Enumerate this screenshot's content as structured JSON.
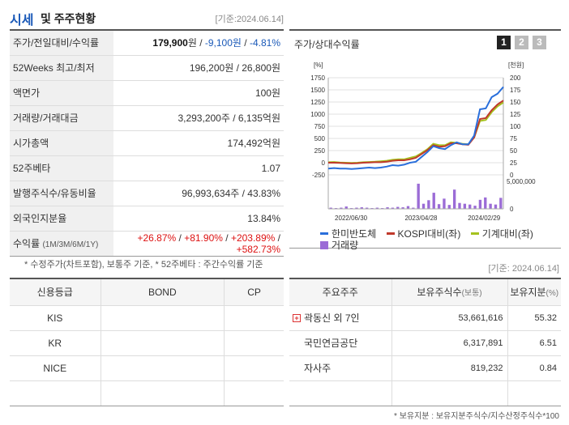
{
  "header": {
    "title_main": "시세",
    "title_sub": "및 주주현황",
    "date": "[기준:2024.06.14]"
  },
  "quote": {
    "price_label": "주가/전일대비/수익률",
    "price": "179,900",
    "price_unit": "원",
    "change": "-9,100원",
    "change_pct": "-4.81%",
    "week52_label": "52Weeks 최고/최저",
    "week52_value": "196,200원 / 26,800원",
    "face_label": "액면가",
    "face_value": "100원",
    "volume_label": "거래량/거래대금",
    "volume_value": "3,293,200주 / 6,135억원",
    "mcap_label": "시가총액",
    "mcap_value": "174,492억원",
    "beta_label": "52주베타",
    "beta_value": "1.07",
    "shares_label": "발행주식수/유동비율",
    "shares_value": "96,993,634주 / 43.83%",
    "foreign_label": "외국인지분율",
    "foreign_value": "13.84%",
    "return_label": "수익률",
    "return_periods": "(1M/3M/6M/1Y)",
    "return_1m": "+26.87%",
    "return_3m": "+81.90%",
    "return_6m": "+203.89%",
    "return_1y": "+582.73%"
  },
  "note1": "* 수정주가(차트포함), 보통주 기준, * 52주베타 : 주간수익률 기준",
  "chart_panel": {
    "title": "주가/상대수익률",
    "pages": [
      "1",
      "2",
      "3"
    ],
    "active_page": "1"
  },
  "chart_data": {
    "type": "line",
    "left_axis_unit": "[%]",
    "right_axis_unit": "[천원]",
    "left_ticks": [
      "1750",
      "1500",
      "1250",
      "1000",
      "750",
      "500",
      "250",
      "0",
      "-250"
    ],
    "right_ticks": [
      "200",
      "175",
      "150",
      "125",
      "100",
      "75",
      "50",
      "25",
      "0"
    ],
    "ylim_left": [
      -250,
      1750
    ],
    "ylim_right": [
      0,
      200
    ],
    "volume_tick": "5,000,000",
    "volume_zero": "0",
    "x_ticks": [
      "2022/06/30",
      "2023/04/28",
      "2024/02/29"
    ],
    "grid": true,
    "legend_position": "bottom",
    "series": [
      {
        "name": "한미반도체",
        "color": "#2a6fdb",
        "values": [
          -120,
          -110,
          -120,
          -120,
          -130,
          -120,
          -110,
          -100,
          -110,
          -100,
          -80,
          -50,
          -60,
          -40,
          0,
          20,
          120,
          220,
          340,
          300,
          280,
          360,
          420,
          380,
          380,
          560,
          1100,
          1120,
          1350,
          1420,
          1560
        ]
      },
      {
        "name": "KOSPI대비(좌)",
        "color": "#c0392b",
        "values": [
          0,
          0,
          -5,
          -10,
          -15,
          -10,
          0,
          5,
          10,
          10,
          20,
          40,
          50,
          50,
          70,
          100,
          180,
          260,
          360,
          330,
          340,
          400,
          400,
          380,
          370,
          520,
          900,
          920,
          1080,
          1200,
          1280
        ]
      },
      {
        "name": "기계대비(좌)",
        "color": "#a5c21e",
        "values": [
          10,
          15,
          5,
          0,
          -5,
          0,
          10,
          15,
          20,
          30,
          40,
          60,
          70,
          70,
          100,
          130,
          200,
          280,
          390,
          360,
          360,
          420,
          410,
          390,
          380,
          520,
          860,
          880,
          1040,
          1160,
          1240
        ]
      }
    ],
    "volume_name": "거래량",
    "volume_color": "#9b6cd6",
    "volume": [
      0.3,
      0.2,
      0.3,
      0.6,
      0.2,
      0.3,
      0.4,
      0.3,
      0.2,
      0.3,
      0.2,
      0.4,
      0.3,
      0.5,
      0.4,
      0.7,
      0.3,
      6.4,
      1.3,
      2.2,
      4.1,
      1.2,
      2.6,
      1.0,
      4.9,
      1.5,
      1.3,
      1.1,
      0.8,
      2.3,
      2.9,
      1.3,
      1.1,
      2.8
    ]
  },
  "date2": "[기준: 2024.06.14]",
  "credit": {
    "headers": [
      "신용등급",
      "BOND",
      "CP"
    ],
    "rows": [
      [
        "KIS",
        "",
        ""
      ],
      [
        "KR",
        "",
        ""
      ],
      [
        "NICE",
        "",
        ""
      ],
      [
        "",
        "",
        ""
      ]
    ]
  },
  "holders": {
    "h_name": "주요주주",
    "h_shares": "보유주식수",
    "h_shares_unit": "(보통)",
    "h_pct": "보유지분",
    "h_pct_unit": "(%)",
    "plus_glyph": "+",
    "rows": [
      {
        "name": "곽동신 외 7인",
        "shares": "53,661,616",
        "pct": "55.32",
        "expand": true
      },
      {
        "name": "국민연금공단",
        "shares": "6,317,891",
        "pct": "6.51"
      },
      {
        "name": "자사주",
        "shares": "819,232",
        "pct": "0.84"
      },
      {
        "name": "",
        "shares": "",
        "pct": ""
      }
    ]
  },
  "note2": "* 보유지분 : 보유지분주식수/지수산정주식수*100"
}
